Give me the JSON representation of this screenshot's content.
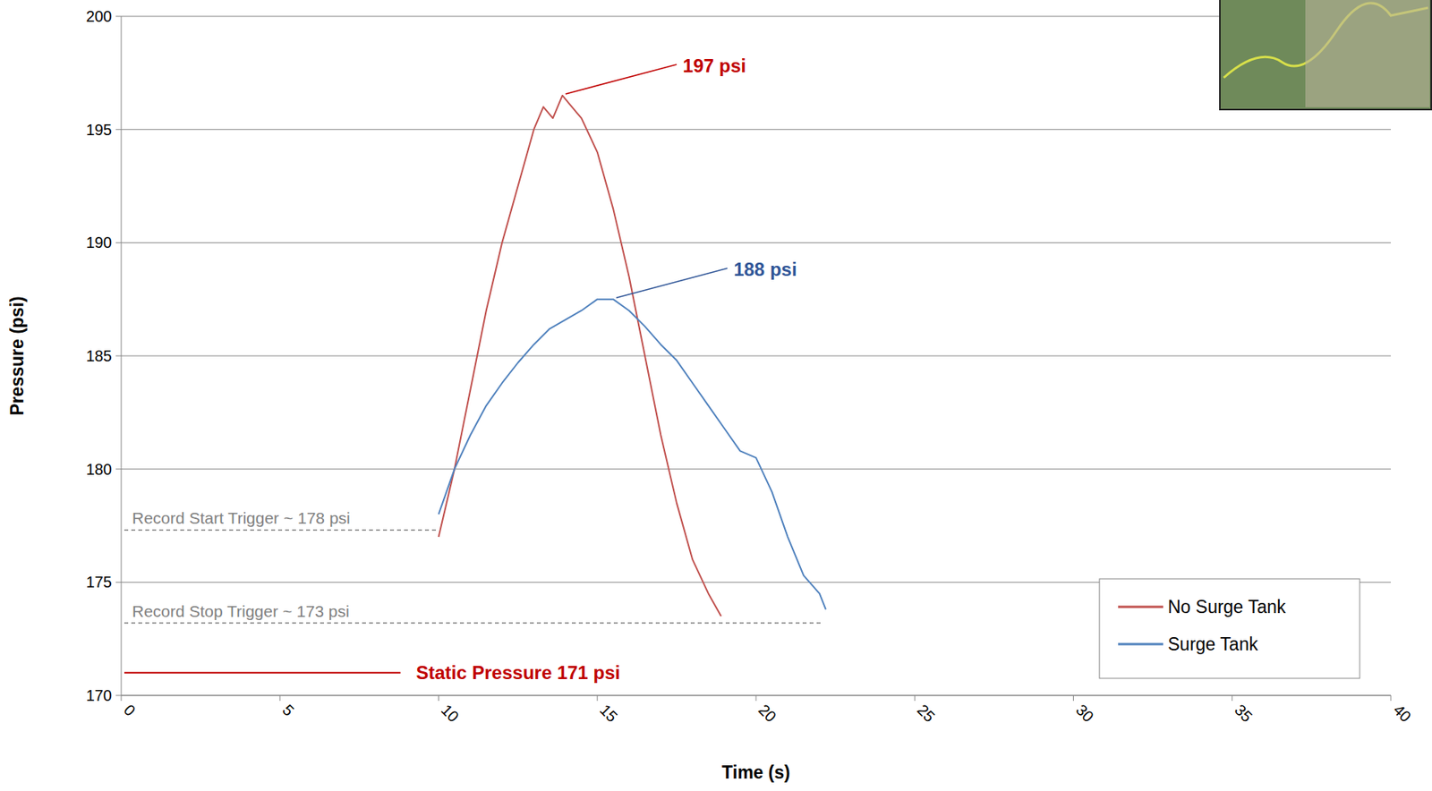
{
  "chart_data": {
    "type": "line",
    "x_label": "Time (s)",
    "y_label": "Pressure (psi)",
    "xlim": [
      0,
      40
    ],
    "xticks": [
      0,
      5,
      10,
      15,
      20,
      25,
      30,
      35,
      40
    ],
    "ylim": [
      170,
      200
    ],
    "yticks": [
      170,
      175,
      180,
      185,
      190,
      195,
      200
    ],
    "grid": true,
    "legend": "bottom-right",
    "series": [
      {
        "name": "No Surge Tank",
        "color": "#c0504d",
        "line_style": "solid",
        "x": [
          10,
          10.5,
          11,
          11.5,
          12,
          12.5,
          13,
          13.3,
          13.6,
          13.9,
          14.2,
          14.5,
          15,
          15.5,
          16,
          16.5,
          17,
          17.5,
          18,
          18.5,
          18.9
        ],
        "values": [
          177,
          180,
          183.5,
          187,
          190,
          192.5,
          195,
          196,
          195.5,
          196.5,
          196,
          195.5,
          194,
          191.5,
          188.5,
          185,
          181.5,
          178.5,
          176,
          174.5,
          173.5
        ]
      },
      {
        "name": "Surge Tank",
        "color": "#4f81bd",
        "line_style": "solid",
        "x": [
          10,
          10.5,
          11,
          11.5,
          12,
          12.5,
          13,
          13.5,
          14,
          14.5,
          15,
          15.5,
          16,
          16.5,
          17,
          17.5,
          18,
          18.5,
          19,
          19.5,
          20,
          20.5,
          21,
          21.5,
          22,
          22.2
        ],
        "values": [
          178,
          180,
          181.5,
          182.8,
          183.8,
          184.7,
          185.5,
          186.2,
          186.6,
          187,
          187.5,
          187.5,
          187,
          186.3,
          185.5,
          184.8,
          183.8,
          182.8,
          181.8,
          180.8,
          180.5,
          179,
          177,
          175.3,
          174.5,
          173.8
        ]
      }
    ],
    "annotations": [
      {
        "text": "197 psi",
        "x": 13.9,
        "y": 196.5,
        "color": "#c00000"
      },
      {
        "text": "188 psi",
        "x": 15.5,
        "y": 187.5,
        "color": "#2f5597"
      }
    ],
    "reference_lines": [
      {
        "text": "Record Start Trigger ~ 178 psi",
        "y": 177.3,
        "x_end": 10,
        "color": "#808080",
        "line_style": "dashed"
      },
      {
        "text": "Record Stop Trigger ~ 173 psi",
        "y": 173.2,
        "x_end": 22.1,
        "color": "#808080",
        "line_style": "dashed"
      },
      {
        "text": "Static Pressure 171 psi",
        "y": 171,
        "x_end": 8.8,
        "color": "#c00000",
        "line_style": "solid"
      }
    ]
  }
}
